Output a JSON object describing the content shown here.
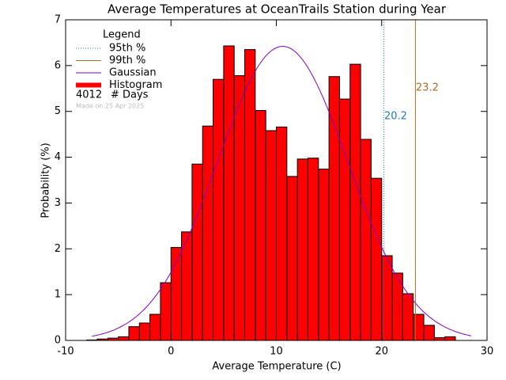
{
  "chart_data": {
    "type": "histogram",
    "title": "Average Temperatures at OceanTrails Station during Year",
    "xlabel": "Average Temperature (C)",
    "ylabel": "Probability (%)",
    "xlim": [
      -10,
      30
    ],
    "xticks": [
      -10,
      0,
      10,
      20,
      30
    ],
    "ylim": [
      0,
      7
    ],
    "yticks": [
      0,
      1,
      2,
      3,
      4,
      5,
      6,
      7
    ],
    "legend_title": "Legend",
    "histogram": {
      "name": "Histogram",
      "color": "#ff0000",
      "bins": [
        -8,
        -7,
        -6,
        -5,
        -4,
        -3,
        -2,
        -1,
        0,
        1,
        2,
        3,
        4,
        5,
        6,
        7,
        8,
        9,
        10,
        11,
        12,
        13,
        14,
        15,
        16,
        17,
        18,
        19,
        20,
        21,
        22,
        23,
        24,
        25,
        26,
        27
      ],
      "values": [
        0.01,
        0.03,
        0.05,
        0.08,
        0.3,
        0.38,
        0.57,
        1.26,
        2.03,
        2.37,
        3.85,
        4.68,
        5.7,
        6.43,
        5.78,
        6.35,
        5.02,
        4.58,
        4.66,
        3.58,
        3.96,
        3.98,
        3.74,
        5.76,
        5.27,
        6.03,
        4.39,
        3.54,
        1.85,
        1.47,
        1.02,
        0.57,
        0.33,
        0.06,
        0.08
      ]
    },
    "gaussian": {
      "name": "Gaussian",
      "color": "#8000c0",
      "mean": 10.6,
      "sigma": 6.2,
      "peak": 6.42,
      "x_range": [
        -7.5,
        28.5
      ]
    },
    "percentiles": [
      {
        "name": "95th %",
        "value": 20.2,
        "color": "#1f77c4"
      },
      {
        "name": "99th %",
        "value": 23.2,
        "color": "#b06a20"
      }
    ],
    "n_days": 4012,
    "n_days_label": "# Days",
    "footnote": "Made on 25 Apr 2025"
  }
}
